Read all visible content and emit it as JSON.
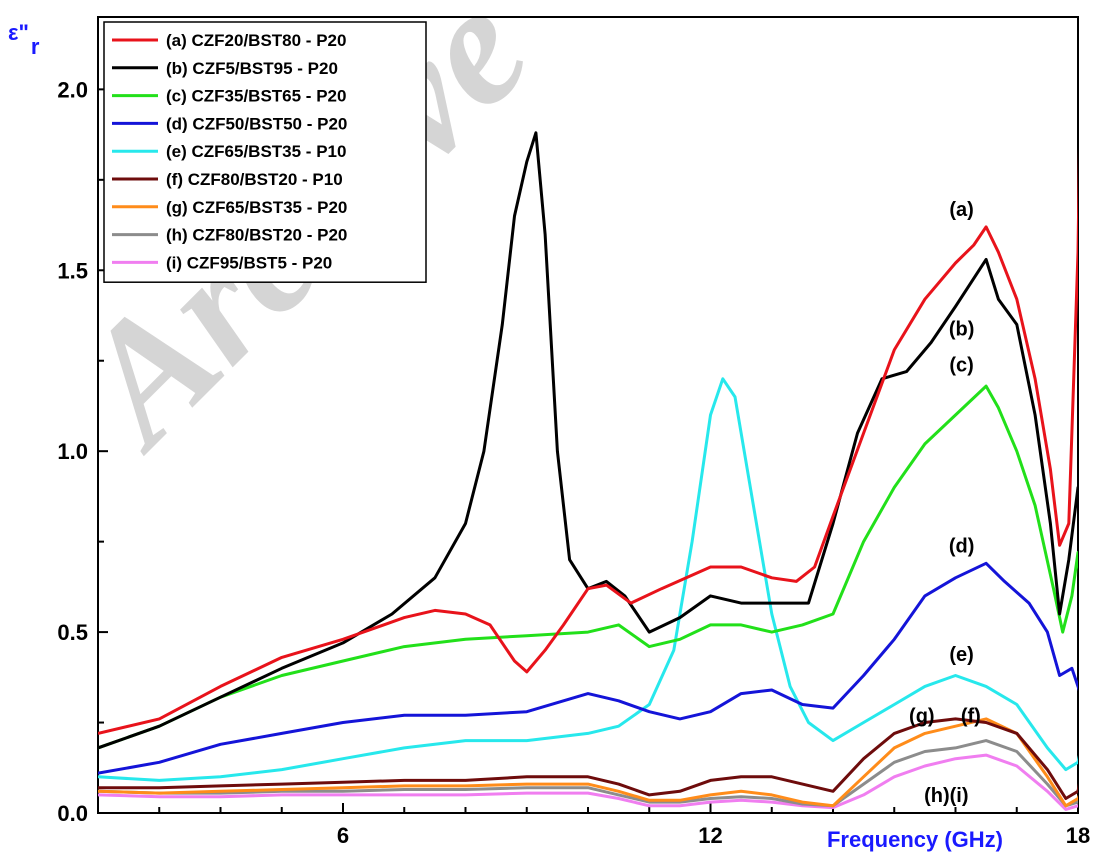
{
  "watermark": "Archive",
  "chart_data": {
    "type": "line",
    "ylabel": "ε\"r",
    "ylabel_main": "ε\"",
    "ylabel_sub": "r",
    "xlabel": "Frequency (GHz)",
    "xlim": [
      2,
      18
    ],
    "ylim": [
      0,
      2.2
    ],
    "x_ticks": [
      "6",
      "12",
      "18"
    ],
    "y_ticks": [
      "0.0",
      "0.5",
      "1.0",
      "1.5",
      "2.0"
    ],
    "grid": false,
    "legend_position": "top-left",
    "colors": {
      "a": "#e8131b",
      "b": "#000000",
      "c": "#22e01a",
      "d": "#1414d8",
      "e": "#27e8ec",
      "f": "#6e0c0c",
      "g": "#ff8c1a",
      "h": "#8c8c8c",
      "i": "#f07ef0",
      "ylabel": "#1a1aff",
      "xlabel": "#1a1aff"
    },
    "series": [
      {
        "key": "a",
        "name": "(a) CZF20/BST80 - P20",
        "color": "#e8131b",
        "points": [
          [
            2,
            0.22
          ],
          [
            3,
            0.26
          ],
          [
            4,
            0.35
          ],
          [
            5,
            0.43
          ],
          [
            6,
            0.48
          ],
          [
            7,
            0.54
          ],
          [
            7.5,
            0.56
          ],
          [
            8,
            0.55
          ],
          [
            8.4,
            0.52
          ],
          [
            8.8,
            0.42
          ],
          [
            9,
            0.39
          ],
          [
            9.3,
            0.45
          ],
          [
            9.6,
            0.52
          ],
          [
            10,
            0.62
          ],
          [
            10.3,
            0.63
          ],
          [
            10.7,
            0.58
          ],
          [
            11.2,
            0.62
          ],
          [
            12,
            0.68
          ],
          [
            12.5,
            0.68
          ],
          [
            13,
            0.65
          ],
          [
            13.4,
            0.64
          ],
          [
            13.7,
            0.68
          ],
          [
            14,
            0.82
          ],
          [
            14.5,
            1.05
          ],
          [
            15,
            1.28
          ],
          [
            15.5,
            1.42
          ],
          [
            16,
            1.52
          ],
          [
            16.3,
            1.57
          ],
          [
            16.5,
            1.62
          ],
          [
            16.7,
            1.55
          ],
          [
            17,
            1.42
          ],
          [
            17.3,
            1.2
          ],
          [
            17.55,
            0.95
          ],
          [
            17.7,
            0.74
          ],
          [
            17.85,
            0.8
          ],
          [
            18,
            1.55
          ],
          [
            18.05,
            2.15
          ],
          [
            18.1,
            1.2
          ],
          [
            18.15,
            0.9
          ],
          [
            18.2,
            0.98
          ]
        ]
      },
      {
        "key": "b",
        "name": "(b) CZF5/BST95 - P20",
        "color": "#000000",
        "points": [
          [
            2,
            0.18
          ],
          [
            3,
            0.24
          ],
          [
            4,
            0.32
          ],
          [
            5,
            0.4
          ],
          [
            6,
            0.47
          ],
          [
            6.8,
            0.55
          ],
          [
            7.5,
            0.65
          ],
          [
            8,
            0.8
          ],
          [
            8.3,
            1.0
          ],
          [
            8.6,
            1.35
          ],
          [
            8.8,
            1.65
          ],
          [
            9,
            1.8
          ],
          [
            9.15,
            1.88
          ],
          [
            9.3,
            1.6
          ],
          [
            9.5,
            1.0
          ],
          [
            9.7,
            0.7
          ],
          [
            10,
            0.62
          ],
          [
            10.3,
            0.64
          ],
          [
            10.6,
            0.6
          ],
          [
            11,
            0.5
          ],
          [
            11.5,
            0.54
          ],
          [
            12,
            0.6
          ],
          [
            12.5,
            0.58
          ],
          [
            13.2,
            0.58
          ],
          [
            13.6,
            0.58
          ],
          [
            14,
            0.8
          ],
          [
            14.4,
            1.05
          ],
          [
            14.8,
            1.2
          ],
          [
            15.2,
            1.22
          ],
          [
            15.6,
            1.3
          ],
          [
            16,
            1.4
          ],
          [
            16.5,
            1.53
          ],
          [
            16.7,
            1.42
          ],
          [
            17,
            1.35
          ],
          [
            17.3,
            1.1
          ],
          [
            17.55,
            0.8
          ],
          [
            17.7,
            0.55
          ],
          [
            17.85,
            0.7
          ],
          [
            18,
            0.9
          ],
          [
            18.1,
            0.72
          ],
          [
            18.15,
            0.95
          ],
          [
            18.2,
            1.05
          ]
        ]
      },
      {
        "key": "c",
        "name": "(c) CZF35/BST65 - P20",
        "color": "#22e01a",
        "points": [
          [
            2,
            0.18
          ],
          [
            3,
            0.24
          ],
          [
            4,
            0.32
          ],
          [
            5,
            0.38
          ],
          [
            6,
            0.42
          ],
          [
            7,
            0.46
          ],
          [
            8,
            0.48
          ],
          [
            9,
            0.49
          ],
          [
            10,
            0.5
          ],
          [
            10.5,
            0.52
          ],
          [
            11,
            0.46
          ],
          [
            11.5,
            0.48
          ],
          [
            12,
            0.52
          ],
          [
            12.5,
            0.52
          ],
          [
            13,
            0.5
          ],
          [
            13.5,
            0.52
          ],
          [
            14,
            0.55
          ],
          [
            14.5,
            0.75
          ],
          [
            15,
            0.9
          ],
          [
            15.5,
            1.02
          ],
          [
            16,
            1.1
          ],
          [
            16.5,
            1.18
          ],
          [
            16.7,
            1.12
          ],
          [
            17,
            1.0
          ],
          [
            17.3,
            0.85
          ],
          [
            17.6,
            0.62
          ],
          [
            17.75,
            0.5
          ],
          [
            17.9,
            0.6
          ],
          [
            18,
            0.72
          ],
          [
            18.1,
            0.46
          ],
          [
            18.15,
            0.58
          ],
          [
            18.2,
            0.55
          ]
        ]
      },
      {
        "key": "d",
        "name": "(d) CZF50/BST50 - P20",
        "color": "#1414d8",
        "points": [
          [
            2,
            0.11
          ],
          [
            3,
            0.14
          ],
          [
            4,
            0.19
          ],
          [
            5,
            0.22
          ],
          [
            6,
            0.25
          ],
          [
            7,
            0.27
          ],
          [
            8,
            0.27
          ],
          [
            9,
            0.28
          ],
          [
            10,
            0.33
          ],
          [
            10.5,
            0.31
          ],
          [
            11,
            0.28
          ],
          [
            11.5,
            0.26
          ],
          [
            12,
            0.28
          ],
          [
            12.5,
            0.33
          ],
          [
            13,
            0.34
          ],
          [
            13.5,
            0.3
          ],
          [
            14,
            0.29
          ],
          [
            14.5,
            0.38
          ],
          [
            15,
            0.48
          ],
          [
            15.5,
            0.6
          ],
          [
            16,
            0.65
          ],
          [
            16.5,
            0.69
          ],
          [
            16.8,
            0.64
          ],
          [
            17.2,
            0.58
          ],
          [
            17.5,
            0.5
          ],
          [
            17.7,
            0.38
          ],
          [
            17.9,
            0.4
          ],
          [
            18.1,
            0.3
          ],
          [
            18.2,
            0.3
          ]
        ]
      },
      {
        "key": "e",
        "name": "(e) CZF65/BST35 - P10",
        "color": "#27e8ec",
        "points": [
          [
            2,
            0.1
          ],
          [
            3,
            0.09
          ],
          [
            4,
            0.1
          ],
          [
            5,
            0.12
          ],
          [
            6,
            0.15
          ],
          [
            7,
            0.18
          ],
          [
            8,
            0.2
          ],
          [
            9,
            0.2
          ],
          [
            10,
            0.22
          ],
          [
            10.5,
            0.24
          ],
          [
            11,
            0.3
          ],
          [
            11.4,
            0.45
          ],
          [
            11.7,
            0.75
          ],
          [
            12,
            1.1
          ],
          [
            12.2,
            1.2
          ],
          [
            12.4,
            1.15
          ],
          [
            12.7,
            0.85
          ],
          [
            13,
            0.55
          ],
          [
            13.3,
            0.35
          ],
          [
            13.6,
            0.25
          ],
          [
            14,
            0.2
          ],
          [
            14.5,
            0.25
          ],
          [
            15,
            0.3
          ],
          [
            15.5,
            0.35
          ],
          [
            16,
            0.38
          ],
          [
            16.5,
            0.35
          ],
          [
            17,
            0.3
          ],
          [
            17.5,
            0.18
          ],
          [
            17.8,
            0.12
          ],
          [
            18,
            0.14
          ],
          [
            18.1,
            0.22
          ],
          [
            18.2,
            0.16
          ]
        ]
      },
      {
        "key": "f",
        "name": "(f) CZF80/BST20 - P10",
        "color": "#6e0c0c",
        "points": [
          [
            2,
            0.07
          ],
          [
            3,
            0.07
          ],
          [
            4,
            0.075
          ],
          [
            5,
            0.08
          ],
          [
            6,
            0.085
          ],
          [
            7,
            0.09
          ],
          [
            8,
            0.09
          ],
          [
            9,
            0.1
          ],
          [
            10,
            0.1
          ],
          [
            10.5,
            0.08
          ],
          [
            11,
            0.05
          ],
          [
            11.5,
            0.06
          ],
          [
            12,
            0.09
          ],
          [
            12.5,
            0.1
          ],
          [
            13,
            0.1
          ],
          [
            13.5,
            0.08
          ],
          [
            14,
            0.06
          ],
          [
            14.5,
            0.15
          ],
          [
            15,
            0.22
          ],
          [
            15.5,
            0.25
          ],
          [
            16,
            0.26
          ],
          [
            16.5,
            0.25
          ],
          [
            17,
            0.22
          ],
          [
            17.5,
            0.12
          ],
          [
            17.8,
            0.04
          ],
          [
            18,
            0.06
          ],
          [
            18.1,
            0.15
          ],
          [
            18.2,
            0.08
          ]
        ]
      },
      {
        "key": "g",
        "name": "(g) CZF65/BST35 - P20",
        "color": "#ff8c1a",
        "points": [
          [
            2,
            0.06
          ],
          [
            3,
            0.055
          ],
          [
            4,
            0.06
          ],
          [
            5,
            0.065
          ],
          [
            6,
            0.07
          ],
          [
            7,
            0.075
          ],
          [
            8,
            0.075
          ],
          [
            9,
            0.08
          ],
          [
            10,
            0.08
          ],
          [
            10.5,
            0.06
          ],
          [
            11,
            0.035
          ],
          [
            11.5,
            0.035
          ],
          [
            12,
            0.05
          ],
          [
            12.5,
            0.06
          ],
          [
            13,
            0.05
          ],
          [
            13.5,
            0.03
          ],
          [
            14,
            0.02
          ],
          [
            14.5,
            0.1
          ],
          [
            15,
            0.18
          ],
          [
            15.5,
            0.22
          ],
          [
            16,
            0.24
          ],
          [
            16.5,
            0.26
          ],
          [
            17,
            0.22
          ],
          [
            17.5,
            0.1
          ],
          [
            17.8,
            0.02
          ],
          [
            18,
            0.04
          ],
          [
            18.1,
            0.08
          ],
          [
            18.2,
            0.04
          ]
        ]
      },
      {
        "key": "h",
        "name": "(h) CZF80/BST20 - P20",
        "color": "#8c8c8c",
        "points": [
          [
            2,
            0.06
          ],
          [
            3,
            0.055
          ],
          [
            4,
            0.055
          ],
          [
            5,
            0.06
          ],
          [
            6,
            0.06
          ],
          [
            7,
            0.065
          ],
          [
            8,
            0.065
          ],
          [
            9,
            0.07
          ],
          [
            10,
            0.07
          ],
          [
            10.5,
            0.05
          ],
          [
            11,
            0.03
          ],
          [
            11.5,
            0.03
          ],
          [
            12,
            0.04
          ],
          [
            12.5,
            0.045
          ],
          [
            13,
            0.04
          ],
          [
            13.5,
            0.025
          ],
          [
            14,
            0.02
          ],
          [
            14.5,
            0.08
          ],
          [
            15,
            0.14
          ],
          [
            15.5,
            0.17
          ],
          [
            16,
            0.18
          ],
          [
            16.5,
            0.2
          ],
          [
            17,
            0.17
          ],
          [
            17.5,
            0.08
          ],
          [
            17.8,
            0.02
          ],
          [
            18,
            0.03
          ],
          [
            18.1,
            0.06
          ],
          [
            18.2,
            0.03
          ]
        ]
      },
      {
        "key": "i",
        "name": "(i) CZF95/BST5 - P20",
        "color": "#f07ef0",
        "points": [
          [
            2,
            0.05
          ],
          [
            3,
            0.045
          ],
          [
            4,
            0.045
          ],
          [
            5,
            0.05
          ],
          [
            6,
            0.05
          ],
          [
            7,
            0.05
          ],
          [
            8,
            0.05
          ],
          [
            9,
            0.055
          ],
          [
            10,
            0.055
          ],
          [
            10.5,
            0.04
          ],
          [
            11,
            0.02
          ],
          [
            11.5,
            0.02
          ],
          [
            12,
            0.03
          ],
          [
            12.5,
            0.035
          ],
          [
            13,
            0.03
          ],
          [
            13.5,
            0.02
          ],
          [
            14,
            0.015
          ],
          [
            14.5,
            0.05
          ],
          [
            15,
            0.1
          ],
          [
            15.5,
            0.13
          ],
          [
            16,
            0.15
          ],
          [
            16.5,
            0.16
          ],
          [
            17,
            0.13
          ],
          [
            17.5,
            0.06
          ],
          [
            17.8,
            0.01
          ],
          [
            18,
            0.02
          ],
          [
            18.1,
            0.04
          ],
          [
            18.2,
            0.02
          ]
        ]
      }
    ],
    "annotations": [
      {
        "text": "(a)",
        "x": 16.1,
        "y": 1.65
      },
      {
        "text": "(b)",
        "x": 16.1,
        "y": 1.32
      },
      {
        "text": "(c)",
        "x": 16.1,
        "y": 1.22
      },
      {
        "text": "(d)",
        "x": 16.1,
        "y": 0.72
      },
      {
        "text": "(e)",
        "x": 16.1,
        "y": 0.42
      },
      {
        "text": "(g)",
        "x": 15.45,
        "y": 0.25
      },
      {
        "text": "(f)",
        "x": 16.25,
        "y": 0.25
      },
      {
        "text": "(h)(i)",
        "x": 15.85,
        "y": 0.03
      }
    ]
  }
}
